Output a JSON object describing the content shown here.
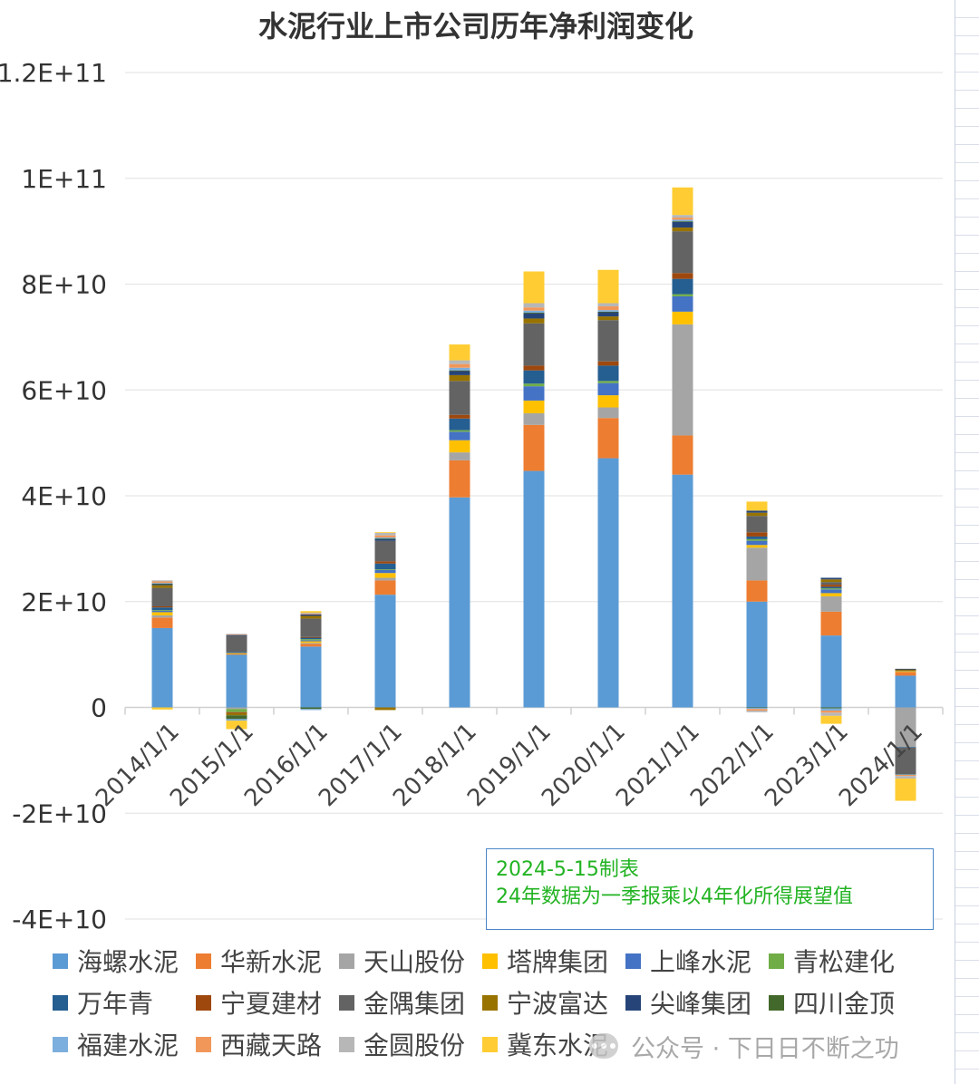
{
  "chart_data": {
    "type": "bar",
    "stacked": true,
    "title": "水泥行业上市公司历年净利润变化",
    "categories": [
      "2014/1/1",
      "2015/1/1",
      "2016/1/1",
      "2017/1/1",
      "2018/1/1",
      "2019/1/1",
      "2020/1/1",
      "2021/1/1",
      "2022/1/1",
      "2023/1/1",
      "2024/1/1"
    ],
    "ylim": [
      -40000000000,
      120000000000
    ],
    "yticks": [
      120000000000,
      100000000000,
      80000000000,
      60000000000,
      40000000000,
      20000000000,
      0,
      -20000000000,
      -40000000000
    ],
    "ytick_labels": [
      "1.2E+11",
      "1E+11",
      "8E+10",
      "6E+10",
      "4E+10",
      "2E+10",
      "0",
      "-2E+10",
      "-4E+10"
    ],
    "xlabel": "",
    "ylabel": "",
    "legend_position": "bottom",
    "series": [
      {
        "name": "海螺水泥",
        "color": "#5b9bd5",
        "values": [
          15000000000,
          10000000000,
          11500000000,
          21300000000,
          39700000000,
          44700000000,
          47100000000,
          44000000000,
          20000000000,
          13600000000,
          6000000000
        ]
      },
      {
        "name": "华新水泥",
        "color": "#ed7d31",
        "values": [
          2000000000,
          100000000,
          500000000,
          2700000000,
          7000000000,
          8700000000,
          7600000000,
          7400000000,
          4000000000,
          4500000000,
          700000000
        ]
      },
      {
        "name": "天山股份",
        "color": "#a5a5a5",
        "values": [
          400000000,
          -300000000,
          200000000,
          500000000,
          1500000000,
          2200000000,
          2000000000,
          21000000000,
          6200000000,
          2900000000,
          -7500000000
        ]
      },
      {
        "name": "塔牌集团",
        "color": "#ffc000",
        "values": [
          600000000,
          200000000,
          300000000,
          900000000,
          2300000000,
          2400000000,
          2300000000,
          2400000000,
          500000000,
          600000000,
          200000000
        ]
      },
      {
        "name": "上峰水泥",
        "color": "#4472c4",
        "values": [
          300000000,
          100000000,
          200000000,
          600000000,
          1600000000,
          2700000000,
          2300000000,
          2900000000,
          800000000,
          700000000,
          100000000
        ]
      },
      {
        "name": "青松建化",
        "color": "#70ad47",
        "values": [
          100000000,
          -600000000,
          200000000,
          100000000,
          300000000,
          500000000,
          400000000,
          400000000,
          300000000,
          200000000,
          50000000
        ]
      },
      {
        "name": "万年青",
        "color": "#255e91",
        "values": [
          500000000,
          100000000,
          300000000,
          1100000000,
          2200000000,
          2500000000,
          2900000000,
          2900000000,
          500000000,
          300000000,
          -100000000
        ]
      },
      {
        "name": "宁夏建材",
        "color": "#9e480e",
        "values": [
          200000000,
          -200000000,
          100000000,
          400000000,
          700000000,
          900000000,
          800000000,
          1100000000,
          800000000,
          400000000,
          50000000
        ]
      },
      {
        "name": "金隅集团",
        "color": "#636363",
        "values": [
          3500000000,
          3000000000,
          3500000000,
          3900000000,
          6400000000,
          8000000000,
          7800000000,
          7900000000,
          3100000000,
          500000000,
          -5000000000
        ]
      },
      {
        "name": "宁波富达",
        "color": "#997300",
        "values": [
          500000000,
          -400000000,
          500000000,
          -500000000,
          1100000000,
          900000000,
          700000000,
          700000000,
          600000000,
          500000000,
          100000000
        ]
      },
      {
        "name": "尖峰集团",
        "color": "#264478",
        "values": [
          300000000,
          200000000,
          300000000,
          400000000,
          800000000,
          1000000000,
          800000000,
          1100000000,
          400000000,
          300000000,
          100000000
        ]
      },
      {
        "name": "四川金顶",
        "color": "#43682b",
        "values": [
          20000000,
          -700000000,
          -300000000,
          20000000,
          100000000,
          100000000,
          100000000,
          80000000,
          -100000000,
          -200000000,
          -50000000
        ]
      },
      {
        "name": "福建水泥",
        "color": "#7cafdd",
        "values": [
          100000000,
          -300000000,
          -200000000,
          200000000,
          500000000,
          400000000,
          300000000,
          300000000,
          -200000000,
          -400000000,
          -100000000
        ]
      },
      {
        "name": "西藏天路",
        "color": "#f1975a",
        "values": [
          300000000,
          100000000,
          100000000,
          400000000,
          700000000,
          600000000,
          700000000,
          400000000,
          -300000000,
          -400000000,
          -200000000
        ]
      },
      {
        "name": "金圆股份",
        "color": "#b7b7b7",
        "values": [
          200000000,
          100000000,
          200000000,
          500000000,
          700000000,
          800000000,
          600000000,
          500000000,
          -300000000,
          -600000000,
          -500000000
        ]
      },
      {
        "name": "冀东水泥",
        "color": "#ffcd33",
        "values": [
          -400000000,
          -1600000000,
          300000000,
          100000000,
          3000000000,
          6000000000,
          6300000000,
          5200000000,
          1700000000,
          -1500000000,
          -4200000000
        ]
      }
    ]
  },
  "note": {
    "line1": "2024-5-15制表",
    "line2": "24年数据为一季报乘以4年化所得展望值"
  },
  "watermark": {
    "text": "公众号 · 下日日不断之功"
  }
}
